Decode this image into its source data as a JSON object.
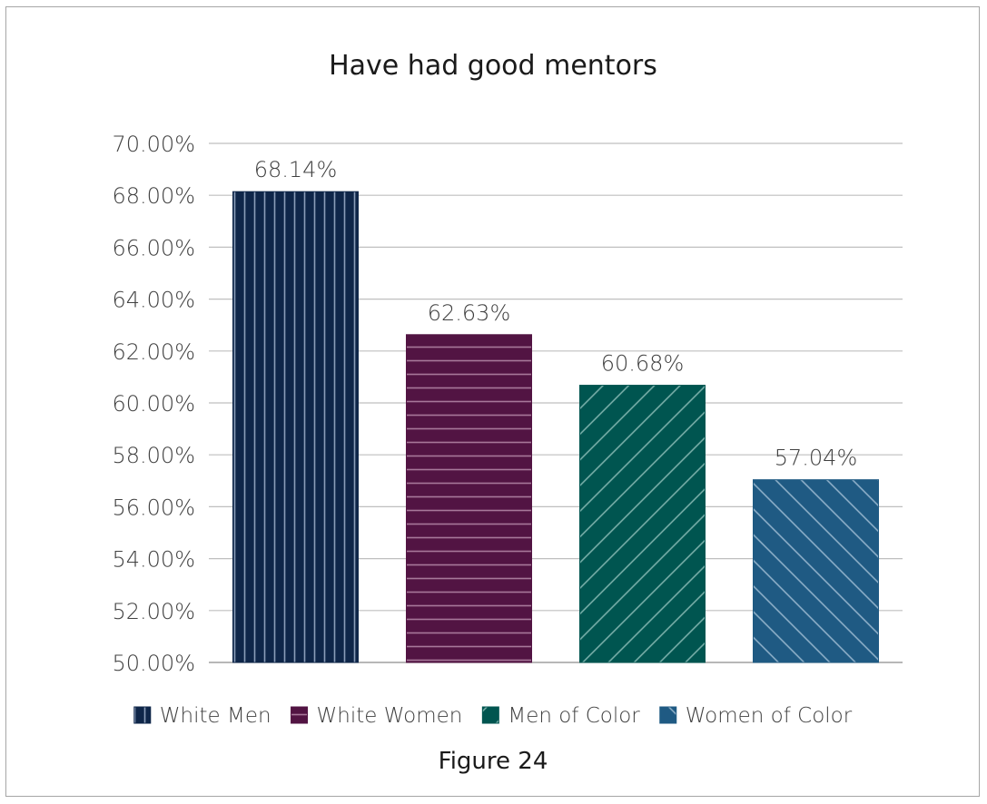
{
  "chart_data": {
    "type": "bar",
    "title": "Have had good mentors",
    "caption": "Figure 24",
    "categories": [
      "White Men",
      "White Women",
      "Men of Color",
      "Women of Color"
    ],
    "values": [
      68.14,
      62.63,
      60.68,
      57.04
    ],
    "data_labels": [
      "68.14%",
      "62.63%",
      "60.68%",
      "57.04%"
    ],
    "ylim": [
      50,
      70
    ],
    "y_ticks": [
      "50.00%",
      "52.00%",
      "54.00%",
      "56.00%",
      "58.00%",
      "60.00%",
      "62.00%",
      "64.00%",
      "66.00%",
      "68.00%",
      "70.00%"
    ],
    "grid": true,
    "legend_position": "bottom",
    "colors": [
      "#0f2649",
      "#521443",
      "#005550",
      "#1f5a83"
    ],
    "patterns": [
      "vertical",
      "horizontal",
      "diagonal-up",
      "diagonal-down"
    ],
    "xlabel": "",
    "ylabel": ""
  }
}
